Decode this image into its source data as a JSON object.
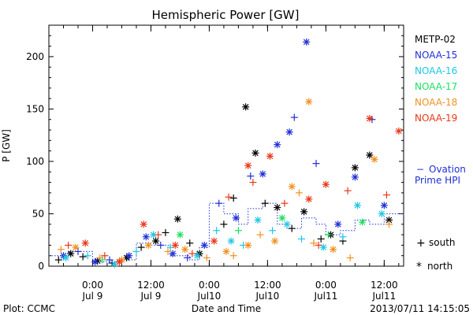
{
  "chart_data": {
    "type": "scatter",
    "title": "Hemispheric Power [GW]",
    "xlabel": "Date and Time",
    "ylabel": "P [GW]",
    "ylim": [
      0,
      230
    ],
    "xlim": [
      "2013-07-08 15:00",
      "2013-07-11 16:00"
    ],
    "yticks": [
      0,
      50,
      100,
      150,
      200
    ],
    "xticks": [
      {
        "time": "2013-07-09 00:00",
        "label1": "0:00",
        "label2": "Jul 9"
      },
      {
        "time": "2013-07-09 12:00",
        "label1": "12:00",
        "label2": "Jul 9"
      },
      {
        "time": "2013-07-10 00:00",
        "label1": "0:00",
        "label2": "Jul10"
      },
      {
        "time": "2013-07-10 12:00",
        "label1": "12:00",
        "label2": "Jul10"
      },
      {
        "time": "2013-07-11 00:00",
        "label1": "0:00",
        "label2": "Jul11"
      },
      {
        "time": "2013-07-11 12:00",
        "label1": "12:00",
        "label2": "Jul11"
      }
    ],
    "grid": false,
    "legend_position": "right",
    "series": [
      {
        "name": "METP-02",
        "color": "#000000",
        "points": [
          [
            "2013-07-08 17:00",
            6,
            "s"
          ],
          [
            "2013-07-08 19:30",
            12,
            "n"
          ],
          [
            "2013-07-08 22:00",
            9,
            "s"
          ],
          [
            "2013-07-09 01:00",
            5,
            "n"
          ],
          [
            "2013-07-09 04:00",
            3,
            "s"
          ],
          [
            "2013-07-09 07:00",
            8,
            "n"
          ],
          [
            "2013-07-09 10:00",
            18,
            "s"
          ],
          [
            "2013-07-09 13:00",
            24,
            "n"
          ],
          [
            "2013-07-09 15:00",
            32,
            "s"
          ],
          [
            "2013-07-09 17:30",
            45,
            "n"
          ],
          [
            "2013-07-09 20:00",
            22,
            "s"
          ],
          [
            "2013-07-09 22:00",
            12,
            "n"
          ],
          [
            "2013-07-10 03:00",
            40,
            "s"
          ],
          [
            "2013-07-10 05:00",
            65,
            "s"
          ],
          [
            "2013-07-10 07:30",
            152,
            "n"
          ],
          [
            "2013-07-10 09:30",
            108,
            "n"
          ],
          [
            "2013-07-10 11:30",
            60,
            "s"
          ],
          [
            "2013-07-10 14:00",
            56,
            "n"
          ],
          [
            "2013-07-10 17:00",
            36,
            "s"
          ],
          [
            "2013-07-10 19:30",
            52,
            "n"
          ],
          [
            "2013-07-10 23:00",
            26,
            "s"
          ],
          [
            "2013-07-11 01:00",
            30,
            "n"
          ],
          [
            "2013-07-11 03:30",
            24,
            "s"
          ],
          [
            "2013-07-11 06:00",
            94,
            "n"
          ],
          [
            "2013-07-11 09:00",
            106,
            "n"
          ],
          [
            "2013-07-11 13:00",
            44,
            "n"
          ]
        ]
      },
      {
        "name": "NOAA-15",
        "color": "#1f2fd6",
        "points": [
          [
            "2013-07-08 18:00",
            10,
            "n"
          ],
          [
            "2013-07-08 21:00",
            14,
            "s"
          ],
          [
            "2013-07-09 00:30",
            4,
            "n"
          ],
          [
            "2013-07-09 03:30",
            6,
            "s"
          ],
          [
            "2013-07-09 07:30",
            10,
            "n"
          ],
          [
            "2013-07-09 11:00",
            28,
            "n"
          ],
          [
            "2013-07-09 14:00",
            20,
            "s"
          ],
          [
            "2013-07-09 16:30",
            12,
            "n"
          ],
          [
            "2013-07-09 19:30",
            8,
            "s"
          ],
          [
            "2013-07-09 23:00",
            20,
            "n"
          ],
          [
            "2013-07-10 02:00",
            60,
            "s"
          ],
          [
            "2013-07-10 05:30",
            46,
            "n"
          ],
          [
            "2013-07-10 08:30",
            86,
            "s"
          ],
          [
            "2013-07-10 11:00",
            88,
            "n"
          ],
          [
            "2013-07-10 14:00",
            116,
            "n"
          ],
          [
            "2013-07-10 16:30",
            128,
            "n"
          ],
          [
            "2013-07-10 17:30",
            142,
            "s"
          ],
          [
            "2013-07-10 20:00",
            214,
            "n"
          ],
          [
            "2013-07-10 22:00",
            98,
            "s"
          ],
          [
            "2013-07-11 02:30",
            40,
            "n"
          ],
          [
            "2013-07-11 06:00",
            85,
            "n"
          ],
          [
            "2013-07-11 09:30",
            140,
            "s"
          ],
          [
            "2013-07-11 12:00",
            58,
            "n"
          ]
        ]
      },
      {
        "name": "NOAA-16",
        "color": "#1fc7e6",
        "points": [
          [
            "2013-07-08 18:30",
            8,
            "n"
          ],
          [
            "2013-07-08 23:00",
            10,
            "s"
          ],
          [
            "2013-07-09 04:30",
            2,
            "n"
          ],
          [
            "2013-07-09 09:00",
            14,
            "s"
          ],
          [
            "2013-07-09 12:30",
            30,
            "n"
          ],
          [
            "2013-07-09 16:00",
            18,
            "s"
          ],
          [
            "2013-07-09 21:30",
            10,
            "n"
          ],
          [
            "2013-07-10 01:30",
            34,
            "s"
          ],
          [
            "2013-07-10 04:30",
            24,
            "n"
          ],
          [
            "2013-07-10 07:00",
            20,
            "s"
          ],
          [
            "2013-07-10 10:00",
            44,
            "n"
          ],
          [
            "2013-07-10 13:00",
            34,
            "s"
          ],
          [
            "2013-07-10 16:00",
            40,
            "n"
          ],
          [
            "2013-07-10 19:00",
            26,
            "s"
          ],
          [
            "2013-07-10 23:30",
            18,
            "n"
          ],
          [
            "2013-07-11 03:30",
            28,
            "s"
          ],
          [
            "2013-07-11 06:30",
            58,
            "n"
          ],
          [
            "2013-07-11 11:30",
            50,
            "n"
          ]
        ]
      },
      {
        "name": "NOAA-17",
        "color": "#18e060",
        "points": [
          [
            "2013-07-09 02:00",
            6,
            "s"
          ],
          [
            "2013-07-09 18:00",
            30,
            "n"
          ],
          [
            "2013-07-10 06:00",
            34,
            "s"
          ],
          [
            "2013-07-10 15:00",
            46,
            "n"
          ],
          [
            "2013-07-11 00:30",
            30,
            "s"
          ],
          [
            "2013-07-11 07:30",
            42,
            "n"
          ]
        ]
      },
      {
        "name": "NOAA-18",
        "color": "#f09020",
        "points": [
          [
            "2013-07-08 17:30",
            16,
            "s"
          ],
          [
            "2013-07-08 20:30",
            18,
            "n"
          ],
          [
            "2013-07-09 01:30",
            8,
            "s"
          ],
          [
            "2013-07-09 06:00",
            6,
            "n"
          ],
          [
            "2013-07-09 11:30",
            20,
            "n"
          ],
          [
            "2013-07-09 15:30",
            14,
            "s"
          ],
          [
            "2013-07-09 19:00",
            16,
            "n"
          ],
          [
            "2013-07-09 23:30",
            8,
            "s"
          ],
          [
            "2013-07-10 03:30",
            14,
            "n"
          ],
          [
            "2013-07-10 05:00",
            10,
            "s"
          ],
          [
            "2013-07-10 08:00",
            20,
            "n"
          ],
          [
            "2013-07-10 10:30",
            30,
            "s"
          ],
          [
            "2013-07-10 13:30",
            24,
            "n"
          ],
          [
            "2013-07-10 17:00",
            76,
            "n"
          ],
          [
            "2013-07-10 18:30",
            70,
            "s"
          ],
          [
            "2013-07-10 20:30",
            157,
            "n"
          ],
          [
            "2013-07-10 21:30",
            22,
            "s"
          ],
          [
            "2013-07-11 01:30",
            16,
            "n"
          ],
          [
            "2013-07-11 05:00",
            8,
            "s"
          ],
          [
            "2013-07-11 10:00",
            102,
            "n"
          ],
          [
            "2013-07-11 13:00",
            40,
            "s"
          ]
        ]
      },
      {
        "name": "NOAA-19",
        "color": "#e83818",
        "points": [
          [
            "2013-07-08 19:00",
            20,
            "s"
          ],
          [
            "2013-07-08 22:30",
            22,
            "n"
          ],
          [
            "2013-07-09 02:30",
            10,
            "s"
          ],
          [
            "2013-07-09 05:30",
            4,
            "n"
          ],
          [
            "2013-07-09 10:30",
            40,
            "n"
          ],
          [
            "2013-07-09 13:30",
            30,
            "s"
          ],
          [
            "2013-07-09 17:00",
            20,
            "n"
          ],
          [
            "2013-07-09 20:30",
            12,
            "s"
          ],
          [
            "2013-07-10 01:00",
            24,
            "n"
          ],
          [
            "2013-07-10 04:00",
            66,
            "s"
          ],
          [
            "2013-07-10 08:00",
            96,
            "n"
          ],
          [
            "2013-07-10 09:00",
            80,
            "s"
          ],
          [
            "2013-07-10 12:30",
            105,
            "n"
          ],
          [
            "2013-07-10 15:30",
            60,
            "s"
          ],
          [
            "2013-07-10 20:30",
            64,
            "n"
          ],
          [
            "2013-07-10 22:30",
            20,
            "s"
          ],
          [
            "2013-07-11 00:00",
            78,
            "n"
          ],
          [
            "2013-07-11 04:30",
            72,
            "s"
          ],
          [
            "2013-07-11 09:00",
            141,
            "n"
          ],
          [
            "2013-07-11 12:30",
            68,
            "s"
          ],
          [
            "2013-07-11 15:00",
            129,
            "n"
          ]
        ]
      }
    ],
    "ovation": {
      "name": "Ovation Prime HPI",
      "color": "#1f2fd6",
      "values": [
        [
          "2013-07-08 15:00",
          10
        ],
        [
          "2013-07-08 19:00",
          14
        ],
        [
          "2013-07-09 00:00",
          4
        ],
        [
          "2013-07-09 05:00",
          6
        ],
        [
          "2013-07-09 09:00",
          22
        ],
        [
          "2013-07-09 12:00",
          20
        ],
        [
          "2013-07-09 16:00",
          10
        ],
        [
          "2013-07-09 20:00",
          6
        ],
        [
          "2013-07-09 22:00",
          18
        ],
        [
          "2013-07-10 00:00",
          60
        ],
        [
          "2013-07-10 03:00",
          50
        ],
        [
          "2013-07-10 06:00",
          40
        ],
        [
          "2013-07-10 08:00",
          55
        ],
        [
          "2013-07-10 11:00",
          60
        ],
        [
          "2013-07-10 14:00",
          40
        ],
        [
          "2013-07-10 16:00",
          36
        ],
        [
          "2013-07-10 19:00",
          46
        ],
        [
          "2013-07-10 22:00",
          40
        ],
        [
          "2013-07-11 00:00",
          30
        ],
        [
          "2013-07-11 03:00",
          34
        ],
        [
          "2013-07-11 06:00",
          44
        ],
        [
          "2013-07-11 09:00",
          40
        ],
        [
          "2013-07-11 12:00",
          50
        ],
        [
          "2013-07-11 16:00",
          48
        ]
      ]
    }
  },
  "legend_markers": {
    "south_symbol": "+",
    "south_label": "south",
    "north_symbol": "*",
    "north_label": "north"
  },
  "ovation_legend": {
    "symbol": "−",
    "line1": "Ovation",
    "line2": "Prime HPI"
  },
  "footer": {
    "plot_credit": "Plot: CCMC",
    "timestamp": "2013/07/11 14:15:05"
  }
}
